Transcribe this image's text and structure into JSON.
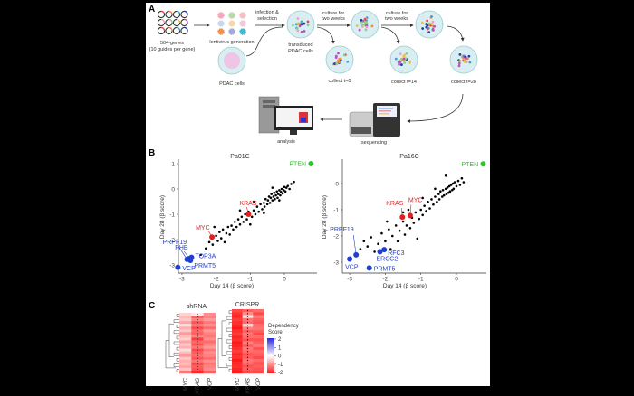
{
  "panel_a": {
    "label": "A",
    "genes_line1": "504-genes",
    "genes_line2": "(10 guides per gene)",
    "lentivirus": "lentivirus generation",
    "pdac_cells": "PDAC cells",
    "infection_line1": "infection &",
    "infection_line2": "selection",
    "transduced_line1": "transduced",
    "transduced_line2": "PDAC cells",
    "culture1_line1": "culture for",
    "culture1_line2": "two weeks",
    "culture2_line1": "culture for",
    "culture2_line2": "two weeks",
    "collect_t0": "collect t=0",
    "collect_t14": "collect t=14",
    "collect_t28": "collect t=28",
    "sequencing": "sequencing",
    "analysis": "analysis"
  },
  "panel_b": {
    "label": "B"
  },
  "panel_c": {
    "label": "C"
  },
  "colors": {
    "background_points": "#000000",
    "pten": "#22cc22",
    "oncogene": "#e02020",
    "essential": "#1f3fd0"
  },
  "chart_data": [
    {
      "type": "scatter",
      "title": "Pa01C",
      "xlabel": "Day 14 (β score)",
      "ylabel": "Day 28 (β score)",
      "xlim": [
        -3.3,
        0.95
      ],
      "ylim": [
        -3.3,
        1.3
      ],
      "xticks": [
        "-3",
        "-2",
        "-1",
        "0"
      ],
      "yticks": [
        "1",
        "0",
        "-1",
        "-2",
        "-3"
      ],
      "points": [
        [
          -2.45,
          -2.6
        ],
        [
          -2.3,
          -2.35
        ],
        [
          -2.2,
          -2.1
        ],
        [
          -2.1,
          -2.2
        ],
        [
          -2.0,
          -1.85
        ],
        [
          -1.95,
          -2.05
        ],
        [
          -1.9,
          -1.7
        ],
        [
          -1.85,
          -1.95
        ],
        [
          -1.8,
          -1.6
        ],
        [
          -1.7,
          -1.75
        ],
        [
          -1.65,
          -1.5
        ],
        [
          -1.6,
          -1.8
        ],
        [
          -1.55,
          -1.45
        ],
        [
          -1.5,
          -1.6
        ],
        [
          -1.45,
          -1.3
        ],
        [
          -1.4,
          -1.5
        ],
        [
          -1.35,
          -1.2
        ],
        [
          -1.3,
          -1.4
        ],
        [
          -1.25,
          -1.1
        ],
        [
          -1.2,
          -1.3
        ],
        [
          -1.15,
          -1.0
        ],
        [
          -1.1,
          -1.2
        ],
        [
          -1.05,
          -0.9
        ],
        [
          -0.95,
          -1.1
        ],
        [
          -0.9,
          -0.85
        ],
        [
          -0.85,
          -1.0
        ],
        [
          -0.8,
          -0.7
        ],
        [
          -0.75,
          -0.9
        ],
        [
          -0.7,
          -0.6
        ],
        [
          -0.65,
          -0.8
        ],
        [
          -0.6,
          -0.55
        ],
        [
          -0.58,
          -0.7
        ],
        [
          -0.55,
          -0.4
        ],
        [
          -0.5,
          -0.6
        ],
        [
          -0.48,
          -0.45
        ],
        [
          -0.45,
          -0.3
        ],
        [
          -0.42,
          -0.55
        ],
        [
          -0.4,
          -0.35
        ],
        [
          -0.38,
          -0.2
        ],
        [
          -0.35,
          -0.45
        ],
        [
          -0.32,
          -0.3
        ],
        [
          -0.3,
          -0.15
        ],
        [
          -0.28,
          -0.4
        ],
        [
          -0.25,
          -0.25
        ],
        [
          -0.22,
          -0.1
        ],
        [
          -0.2,
          -0.35
        ],
        [
          -0.18,
          -0.2
        ],
        [
          -0.15,
          -0.05
        ],
        [
          -0.12,
          -0.25
        ],
        [
          -0.1,
          -0.12
        ],
        [
          -0.08,
          0.0
        ],
        [
          -0.05,
          -0.18
        ],
        [
          -0.02,
          -0.05
        ],
        [
          0.0,
          0.08
        ],
        [
          0.03,
          -0.1
        ],
        [
          0.06,
          0.05
        ],
        [
          0.1,
          0.12
        ],
        [
          0.15,
          0.0
        ],
        [
          0.2,
          0.2
        ],
        [
          0.28,
          0.28
        ],
        [
          -2.05,
          -1.5
        ],
        [
          -1.75,
          -2.1
        ],
        [
          -1.0,
          -1.4
        ],
        [
          -0.6,
          -0.95
        ],
        [
          -1.3,
          -0.85
        ],
        [
          -0.9,
          -0.5
        ],
        [
          -0.35,
          0.05
        ],
        [
          -0.15,
          -0.45
        ]
      ],
      "highlighted": [
        {
          "gene": "PTEN",
          "x": 0.78,
          "y": 1.0,
          "group": "pten"
        },
        {
          "gene": "KRAS",
          "x": -1.05,
          "y": -1.0,
          "group": "oncogene"
        },
        {
          "gene": "MYC",
          "x": -2.12,
          "y": -1.9,
          "group": "oncogene"
        },
        {
          "gene": "PRPF19",
          "x": -2.85,
          "y": -2.78,
          "group": "essential"
        },
        {
          "gene": "PHB",
          "x": -2.78,
          "y": -2.75,
          "group": "essential"
        },
        {
          "gene": "TOP3A",
          "x": -2.72,
          "y": -2.7,
          "group": "essential"
        },
        {
          "gene": "PRMT5",
          "x": -2.75,
          "y": -2.82,
          "group": "essential"
        },
        {
          "gene": "VCP",
          "x": -3.12,
          "y": -3.1,
          "group": "essential"
        }
      ]
    },
    {
      "type": "scatter",
      "title": "Pa16C",
      "xlabel": "Day 14 (β score)",
      "ylabel": "Day 28 (β score)",
      "xlim": [
        -3.2,
        0.95
      ],
      "ylim": [
        -3.4,
        1.1
      ],
      "xticks": [
        "-3",
        "-2",
        "-1",
        "0"
      ],
      "yticks": [
        "0",
        "-1",
        "-2",
        "-3"
      ],
      "points": [
        [
          -2.6,
          -2.2
        ],
        [
          -2.5,
          -2.4
        ],
        [
          -2.4,
          -2.05
        ],
        [
          -2.3,
          -2.6
        ],
        [
          -2.2,
          -2.3
        ],
        [
          -2.1,
          -1.9
        ],
        [
          -2.0,
          -2.2
        ],
        [
          -1.9,
          -1.75
        ],
        [
          -1.85,
          -2.5
        ],
        [
          -1.8,
          -2.0
        ],
        [
          -1.7,
          -1.6
        ],
        [
          -1.65,
          -2.2
        ],
        [
          -1.6,
          -1.8
        ],
        [
          -1.5,
          -1.45
        ],
        [
          -1.45,
          -1.95
        ],
        [
          -1.4,
          -1.6
        ],
        [
          -1.3,
          -1.7
        ],
        [
          -1.25,
          -1.3
        ],
        [
          -1.2,
          -1.5
        ],
        [
          -1.15,
          -1.1
        ],
        [
          -1.1,
          -2.1
        ],
        [
          -1.05,
          -1.35
        ],
        [
          -1.0,
          -1.0
        ],
        [
          -0.95,
          -1.2
        ],
        [
          -0.9,
          -0.85
        ],
        [
          -0.85,
          -1.05
        ],
        [
          -0.8,
          -0.7
        ],
        [
          -0.75,
          -0.95
        ],
        [
          -0.7,
          -0.6
        ],
        [
          -0.65,
          -0.8
        ],
        [
          -0.6,
          -0.5
        ],
        [
          -0.55,
          -0.7
        ],
        [
          -0.5,
          -0.4
        ],
        [
          -0.48,
          -0.6
        ],
        [
          -0.45,
          -0.3
        ],
        [
          -0.4,
          -0.5
        ],
        [
          -0.38,
          -0.25
        ],
        [
          -0.35,
          -0.45
        ],
        [
          -0.3,
          -0.2
        ],
        [
          -0.28,
          -0.4
        ],
        [
          -0.25,
          -0.15
        ],
        [
          -0.22,
          -0.35
        ],
        [
          -0.2,
          -0.1
        ],
        [
          -0.18,
          -0.3
        ],
        [
          -0.15,
          -0.05
        ],
        [
          -0.12,
          -0.25
        ],
        [
          -0.1,
          0.0
        ],
        [
          -0.08,
          -0.2
        ],
        [
          -0.05,
          0.05
        ],
        [
          0.0,
          -0.1
        ],
        [
          0.05,
          0.1
        ],
        [
          0.1,
          -0.05
        ],
        [
          0.15,
          0.2
        ],
        [
          0.2,
          0.05
        ],
        [
          -0.3,
          0.3
        ],
        [
          -2.7,
          -2.5
        ],
        [
          -1.5,
          -1.1
        ],
        [
          -0.6,
          -0.2
        ],
        [
          -1.95,
          -1.45
        ],
        [
          -1.35,
          -1.0
        ],
        [
          -0.95,
          -0.55
        ]
      ],
      "highlighted": [
        {
          "gene": "PTEN",
          "x": 0.75,
          "y": 0.75,
          "group": "pten"
        },
        {
          "gene": "KRAS",
          "x": -1.52,
          "y": -1.28,
          "group": "oncogene"
        },
        {
          "gene": "MYC",
          "x": -1.3,
          "y": -1.22,
          "group": "oncogene"
        },
        {
          "gene": "PRPF19",
          "x": -2.82,
          "y": -2.72,
          "group": "essential"
        },
        {
          "gene": "VCP",
          "x": -3.0,
          "y": -2.88,
          "group": "essential"
        },
        {
          "gene": "ERCC2",
          "x": -2.15,
          "y": -2.6,
          "group": "essential"
        },
        {
          "gene": "RFC3",
          "x": -2.03,
          "y": -2.52,
          "group": "essential"
        },
        {
          "gene": "PRMT5",
          "x": -2.45,
          "y": -3.22,
          "group": "essential"
        }
      ]
    },
    {
      "type": "heatmap",
      "title": "shRNA",
      "columns": [
        "MYC",
        "KRAS",
        "VCP"
      ],
      "values": {
        "MYC": [
          -0.4,
          -0.6,
          -0.5,
          -0.8,
          -0.3,
          -0.7,
          -0.5,
          -0.9,
          -0.6,
          -0.4,
          -0.8,
          -0.5,
          -0.7,
          -0.3,
          -0.6,
          -0.9,
          -0.5,
          -0.7,
          -0.6,
          -0.8,
          -0.5,
          -1.2
        ],
        "KRAS": [
          -0.2,
          -1.4,
          -1.1,
          -1.5,
          -1.2,
          -1.6,
          -1.3,
          -1.4,
          -1.1,
          -1.7,
          -1.3,
          -1.5,
          -1.2,
          -1.6,
          -1.4,
          -1.3,
          -1.5,
          -1.2,
          -1.6,
          -1.4,
          -1.5,
          -1.9
        ],
        "VCP": [
          -1.0,
          -1.1,
          -0.9,
          -1.2,
          -1.0,
          -1.3,
          -0.9,
          -1.1,
          -1.2,
          -1.0,
          -1.3,
          -1.1,
          -0.9,
          -1.2,
          -1.0,
          -1.1,
          -1.3,
          -1.0,
          -1.2,
          -1.1,
          -1.0,
          -1.4
        ]
      }
    },
    {
      "type": "heatmap",
      "title": "CRISPR",
      "columns": [
        "MYC",
        "KRAS",
        "VCP"
      ],
      "values": {
        "MYC": [
          -1.6,
          -1.8,
          -1.9,
          -1.7,
          -1.8,
          -1.9,
          -2.0,
          -1.8,
          -1.7,
          -1.9,
          -1.8,
          -2.0,
          -1.9,
          -1.8,
          -1.7,
          -1.9,
          -1.8,
          -2.0,
          -1.9,
          -1.8,
          -1.9,
          -2.0
        ],
        "KRAS": [
          -1.4,
          -1.0,
          -0.3,
          -1.2,
          -1.3,
          -0.4,
          -1.1,
          -1.4,
          -1.2,
          -1.3,
          -1.5,
          -1.1,
          -1.4,
          -1.2,
          -1.3,
          -1.5,
          -1.4,
          -1.2,
          -1.3,
          -1.5,
          -1.4,
          -1.6
        ],
        "VCP": [
          -1.3,
          -1.6,
          -1.2,
          -1.4,
          -1.5,
          -1.3,
          -1.2,
          -1.4,
          -1.6,
          -1.3,
          -1.5,
          -1.4,
          -1.2,
          -1.5,
          -1.3,
          -1.4,
          -1.6,
          -1.3,
          -1.5,
          -1.4,
          -1.5,
          -1.6
        ]
      }
    }
  ],
  "legend": {
    "title_line1": "Dependency",
    "title_line2": "Score",
    "range": [
      -2,
      2
    ],
    "ticks": [
      "2",
      "1",
      "0",
      "-1",
      "-2"
    ],
    "low_color": "#ff1a1a",
    "mid_color": "#ffffff",
    "high_color": "#2a2ad8"
  }
}
